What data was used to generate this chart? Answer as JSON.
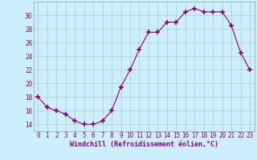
{
  "x": [
    0,
    1,
    2,
    3,
    4,
    5,
    6,
    7,
    8,
    9,
    10,
    11,
    12,
    13,
    14,
    15,
    16,
    17,
    18,
    19,
    20,
    21,
    22,
    23
  ],
  "y": [
    18,
    16.5,
    16,
    15.5,
    14.5,
    14,
    14,
    14.5,
    16,
    19.5,
    22,
    25,
    27.5,
    27.5,
    29,
    29,
    30.5,
    31,
    30.5,
    30.5,
    30.5,
    28.5,
    24.5,
    22
  ],
  "line_color": "#880088",
  "marker": "+",
  "marker_size": 4,
  "marker_lw": 1.2,
  "bg_color": "#cceeff",
  "grid_color": "#aacccc",
  "xlabel": "Windchill (Refroidissement éolien,°C)",
  "xlabel_color": "#880088",
  "xlabel_fontsize": 6.0,
  "tick_color": "#880088",
  "tick_fontsize": 5.5,
  "ylim": [
    13,
    32
  ],
  "yticks": [
    14,
    16,
    18,
    20,
    22,
    24,
    26,
    28,
    30
  ],
  "xlim": [
    -0.5,
    23.5
  ],
  "xticks": [
    0,
    1,
    2,
    3,
    4,
    5,
    6,
    7,
    8,
    9,
    10,
    11,
    12,
    13,
    14,
    15,
    16,
    17,
    18,
    19,
    20,
    21,
    22,
    23
  ]
}
